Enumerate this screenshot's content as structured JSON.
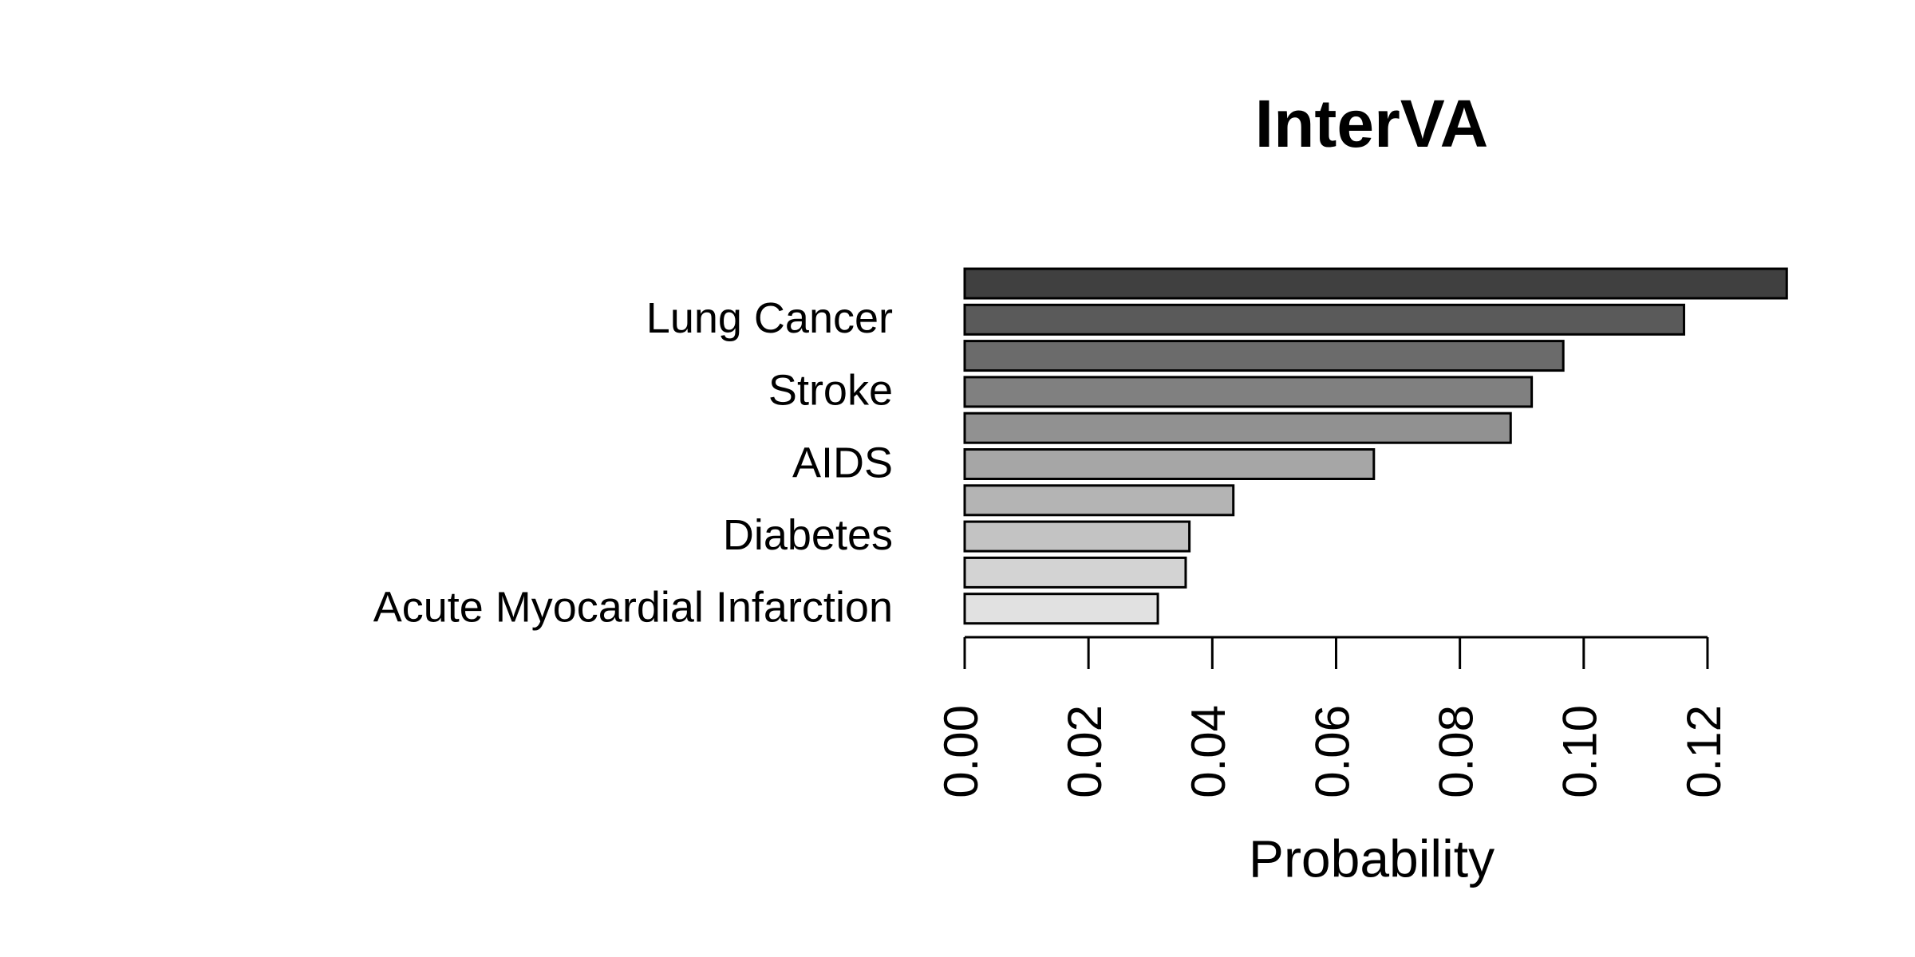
{
  "chart_data": {
    "type": "barh",
    "title": "InterVA",
    "xlabel": "Probability",
    "categories": [
      null,
      "Lung Cancer",
      null,
      "Stroke",
      null,
      "AIDS",
      null,
      "Diabetes",
      null,
      "Acute Myocardial Infarction"
    ],
    "values": [
      0.1328,
      0.1162,
      0.0967,
      0.0916,
      0.0882,
      0.0661,
      0.0434,
      0.0363,
      0.0357,
      0.0312
    ],
    "colors": [
      "#404040",
      "#5a5a5a",
      "#6b6b6b",
      "#808080",
      "#919191",
      "#a6a6a6",
      "#b4b4b4",
      "#c3c3c3",
      "#d3d3d3",
      "#e1e1e1"
    ],
    "xlim": [
      0,
      0.14
    ],
    "xticks": [
      {
        "value": 0,
        "label": "0.00"
      },
      0.02,
      0.04,
      0.06,
      0.08,
      {
        "value": 0.1,
        "label": "0.10"
      },
      0.12
    ]
  }
}
